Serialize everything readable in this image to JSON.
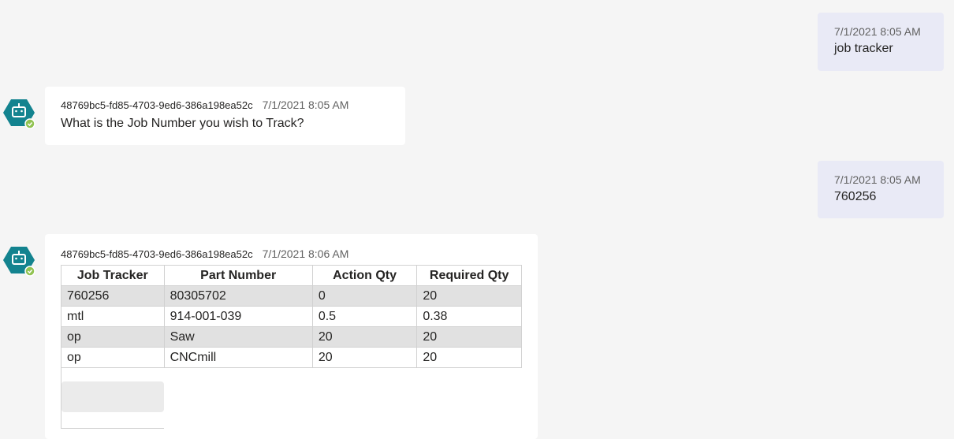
{
  "messages": [
    {
      "role": "user",
      "timestamp": "7/1/2021 8:05 AM",
      "text": "job tracker"
    },
    {
      "role": "bot",
      "sender": "48769bc5-fd85-4703-9ed6-386a198ea52c",
      "timestamp": "7/1/2021 8:05 AM",
      "text": "What is the Job Number you wish to Track?",
      "avatar_icon": "bot-icon",
      "status_icon": "check-icon"
    },
    {
      "role": "user",
      "timestamp": "7/1/2021 8:05 AM",
      "text": "760256"
    },
    {
      "role": "bot",
      "sender": "48769bc5-fd85-4703-9ed6-386a198ea52c",
      "timestamp": "7/1/2021 8:06 AM",
      "avatar_icon": "bot-icon",
      "status_icon": "check-icon",
      "table": {
        "headers": [
          "Job Tracker",
          "Part Number",
          "Action Qty",
          "Required Qty"
        ],
        "rows": [
          [
            "760256",
            "80305702",
            "0",
            "20"
          ],
          [
            "mtl",
            "914-001-039",
            "0.5",
            "0.38"
          ],
          [
            "op",
            "Saw",
            "20",
            "20"
          ],
          [
            "op",
            "CNCmill",
            "20",
            "20"
          ]
        ]
      }
    }
  ],
  "colors": {
    "avatar": "#13838f",
    "status": "#92c353",
    "user_bubble": "#e9eaf6",
    "alt_row": "#e1e1e1"
  }
}
